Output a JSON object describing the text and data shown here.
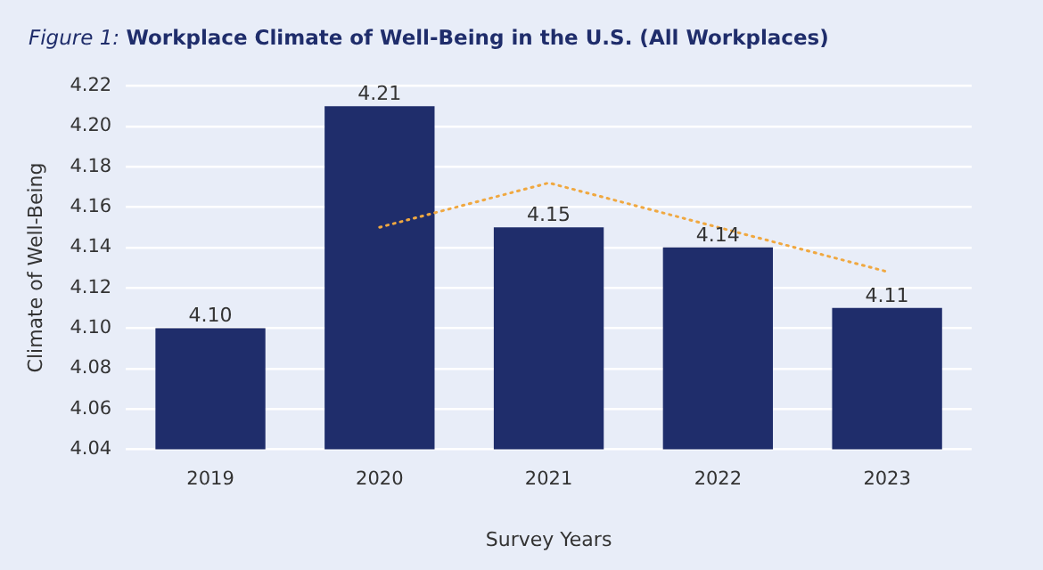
{
  "chart_data": {
    "type": "bar",
    "title": "Figure 1: Workplace Climate of Well-Being in the U.S. (All Workplaces)",
    "xlabel": "Survey Years",
    "ylabel": "Climate of Well-Being",
    "categories": [
      "2019",
      "2020",
      "2021",
      "2022",
      "2023"
    ],
    "series": [
      {
        "color": "#1f2d6b",
        "values": [
          4.1,
          4.21,
          4.15,
          4.14,
          4.11
        ],
        "value_labels": [
          "4.10",
          "4.21",
          "4.15",
          "4.14",
          "4.11"
        ]
      },
      {
        "type": "line",
        "color": "#f0a840",
        "line_style": "dotted",
        "marker": "none",
        "values": [
          null,
          4.15,
          4.172,
          4.15,
          4.128
        ]
      }
    ],
    "ylim": [
      4.04,
      4.22
    ],
    "yticks": [
      {
        "value": 4.04,
        "label": "4.04"
      },
      {
        "value": 4.06,
        "label": "4.06"
      },
      {
        "value": 4.08,
        "label": "4.08"
      },
      {
        "value": 4.1,
        "label": "4.10"
      },
      {
        "value": 4.12,
        "label": "4.12"
      },
      {
        "value": 4.14,
        "label": "4.14"
      },
      {
        "value": 4.16,
        "label": "4.16"
      },
      {
        "value": 4.18,
        "label": "4.18"
      },
      {
        "value": 4.2,
        "label": "4.20"
      },
      {
        "value": 4.22,
        "label": "4.22"
      }
    ],
    "grid": "y",
    "legend": false
  }
}
